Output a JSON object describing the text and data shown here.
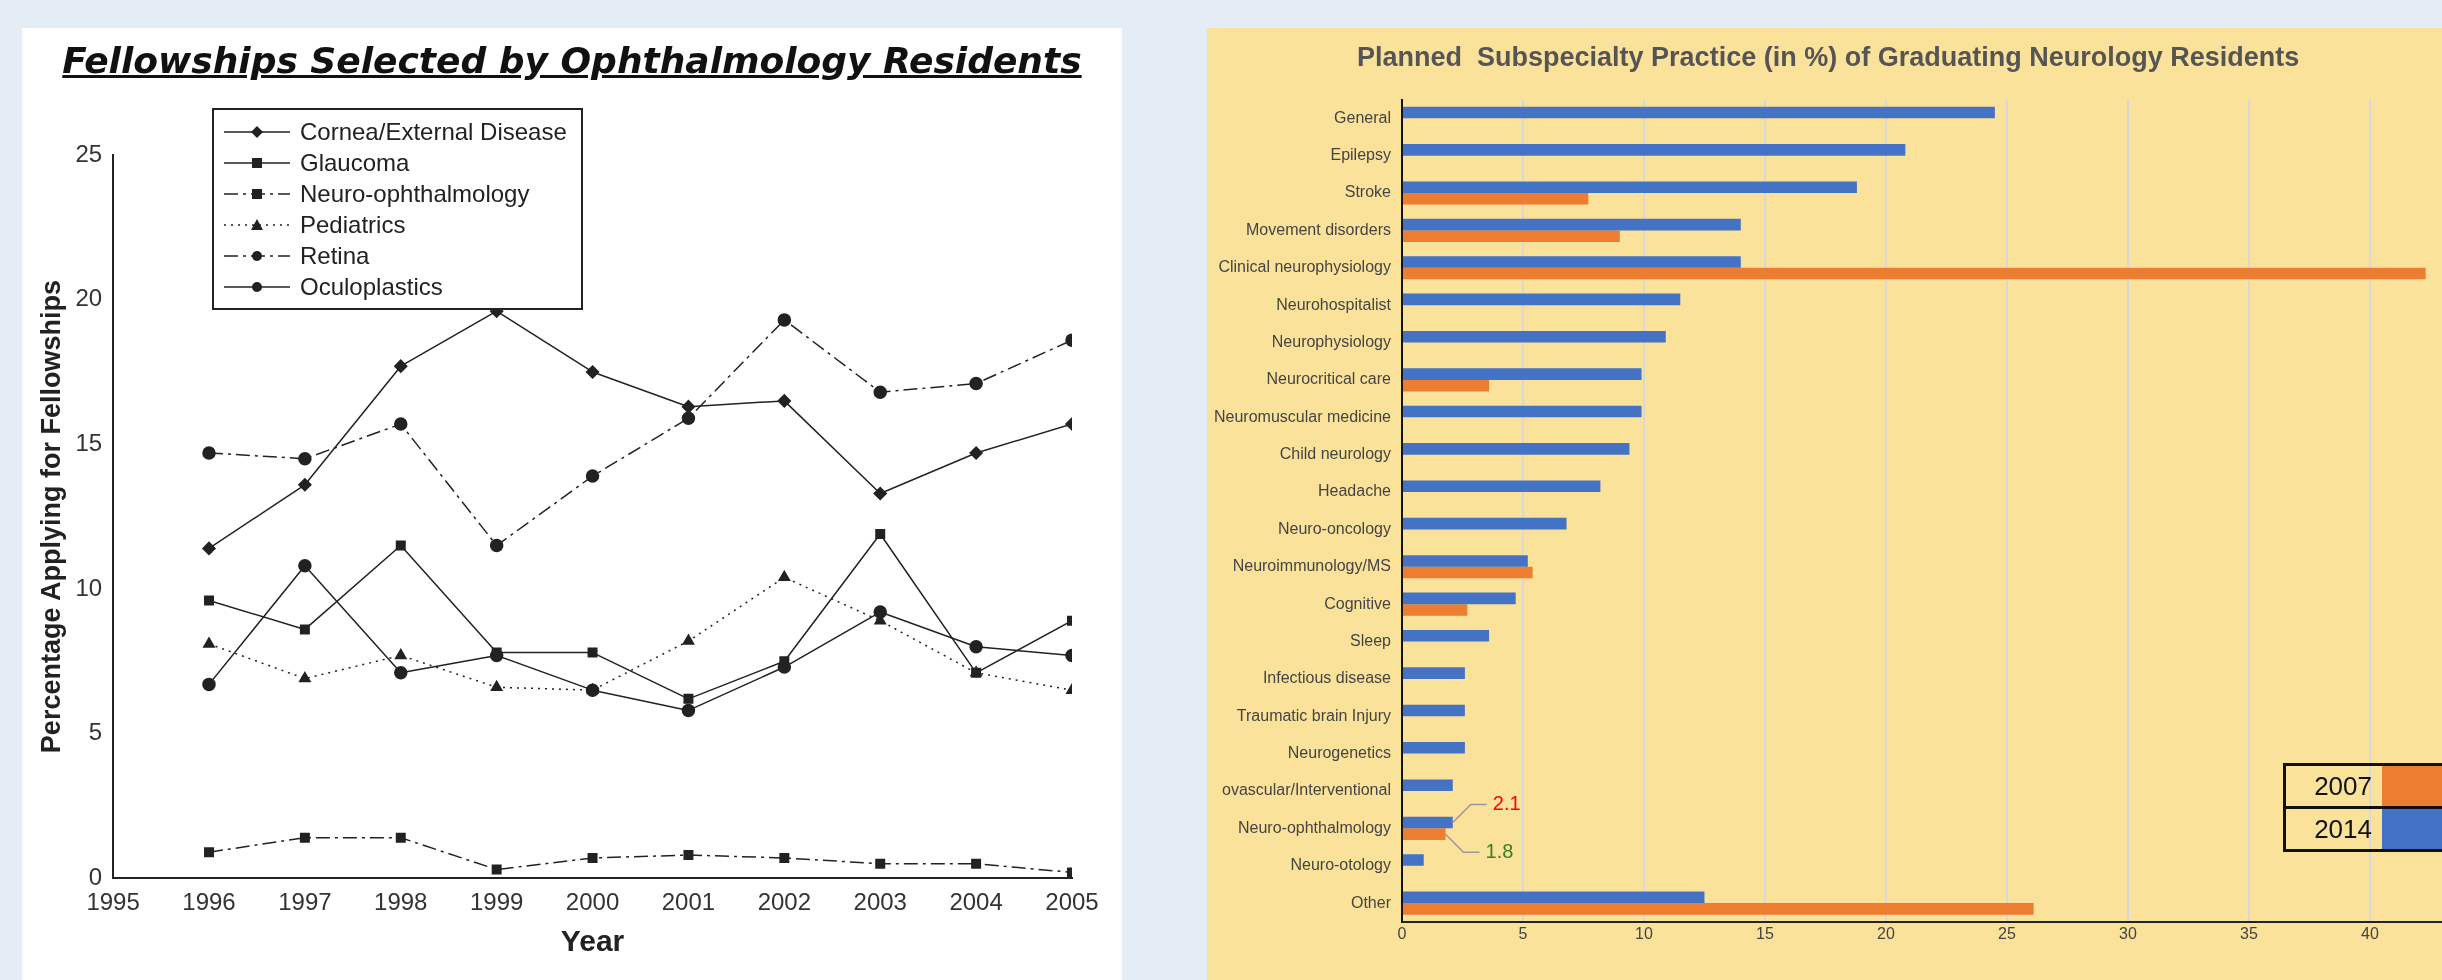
{
  "chart_data": [
    {
      "type": "line",
      "title": "Fellowships Selected by Ophthalmology Residents",
      "xlabel": "Year",
      "ylabel": "Percentage Applying for Fellowships",
      "x": [
        1996,
        1997,
        1998,
        1999,
        2000,
        2001,
        2002,
        2003,
        2004,
        2005
      ],
      "xlim": [
        1995,
        2005
      ],
      "xticks": [
        1995,
        1996,
        1997,
        1998,
        1999,
        2000,
        2001,
        2002,
        2003,
        2004,
        2005
      ],
      "ylim": [
        0,
        25
      ],
      "yticks": [
        0,
        5,
        10,
        15,
        20,
        25
      ],
      "legend": "top left",
      "grid": false,
      "series": [
        {
          "name": "Cornea/External Disease",
          "color": "#222222",
          "marker": "diamond",
          "line_style": "solid",
          "values": [
            11.4,
            13.6,
            17.7,
            19.6,
            17.5,
            16.3,
            16.5,
            13.3,
            14.7,
            15.7
          ]
        },
        {
          "name": "Glaucoma",
          "color": "#222222",
          "marker": "square",
          "line_style": "solid",
          "values": [
            9.6,
            8.6,
            11.5,
            7.8,
            7.8,
            6.2,
            7.5,
            11.9,
            7.1,
            8.9
          ]
        },
        {
          "name": "Neuro-ophthalmology",
          "color": "#222222",
          "marker": "square",
          "line_style": "dashed",
          "values": [
            0.9,
            1.4,
            1.4,
            0.3,
            0.7,
            0.8,
            0.7,
            0.5,
            0.5,
            0.2
          ]
        },
        {
          "name": "Pediatrics",
          "color": "#222222",
          "marker": "triangle",
          "line_style": "dotted",
          "values": [
            8.1,
            6.9,
            7.7,
            6.6,
            6.5,
            8.2,
            10.4,
            8.9,
            7.1,
            6.5
          ]
        },
        {
          "name": "Retina",
          "color": "#222222",
          "marker": "circle",
          "line_style": "dashed",
          "values": [
            14.7,
            14.5,
            15.7,
            11.5,
            13.9,
            15.9,
            19.3,
            16.8,
            17.1,
            18.6
          ]
        },
        {
          "name": "Oculoplastics",
          "color": "#222222",
          "marker": "circle",
          "line_style": "solid",
          "values": [
            6.7,
            10.8,
            7.1,
            7.7,
            6.5,
            5.8,
            7.3,
            9.2,
            8.0,
            7.7
          ]
        }
      ]
    },
    {
      "type": "bar",
      "orientation": "horizontal",
      "title": "Planned  Subspecialty Practice (in %) of Graduating Neurology Residents",
      "categories": [
        "General",
        "Epilepsy",
        "Stroke",
        "Movement disorders",
        "Clinical neurophysiology",
        "Neurohospitalist",
        "Neurophysiology",
        "Neurocritical care",
        "Neuromuscular medicine",
        "Child neurology",
        "Headache",
        "Neuro-oncology",
        "Neuroimmunology/MS",
        "Cognitive",
        "Sleep",
        "Infectious disease",
        "Traumatic brain Injury",
        "Neurogenetics",
        "ovascular/Interventional",
        "Neuro-ophthalmology",
        "Neuro-otology",
        "Other"
      ],
      "xlim": [
        0,
        45
      ],
      "xticks": [
        0,
        5,
        10,
        15,
        20,
        25,
        30,
        35,
        40
      ],
      "grid": "x",
      "legend": "right",
      "series": [
        {
          "name": "2007",
          "color": "#ed7d31",
          "values": [
            null,
            null,
            7.7,
            9.0,
            42.3,
            null,
            null,
            3.6,
            null,
            null,
            null,
            null,
            5.4,
            2.7,
            null,
            null,
            null,
            null,
            null,
            1.8,
            null,
            26.1
          ],
          "value_labels": [
            null,
            null,
            null,
            null,
            null,
            null,
            null,
            null,
            null,
            null,
            null,
            null,
            null,
            null,
            null,
            null,
            null,
            null,
            null,
            "1.8",
            null,
            null
          ]
        },
        {
          "name": "2014",
          "color": "#4472c4",
          "values": [
            24.5,
            20.8,
            18.8,
            14.0,
            14.0,
            11.5,
            10.9,
            9.9,
            9.9,
            9.4,
            8.2,
            6.8,
            5.2,
            4.7,
            3.6,
            2.6,
            2.6,
            2.6,
            2.1,
            2.1,
            0.9,
            12.5
          ],
          "value_labels": [
            null,
            null,
            null,
            null,
            null,
            null,
            null,
            null,
            null,
            null,
            null,
            null,
            null,
            null,
            null,
            null,
            null,
            null,
            null,
            "2.1",
            null,
            null
          ]
        }
      ]
    }
  ]
}
